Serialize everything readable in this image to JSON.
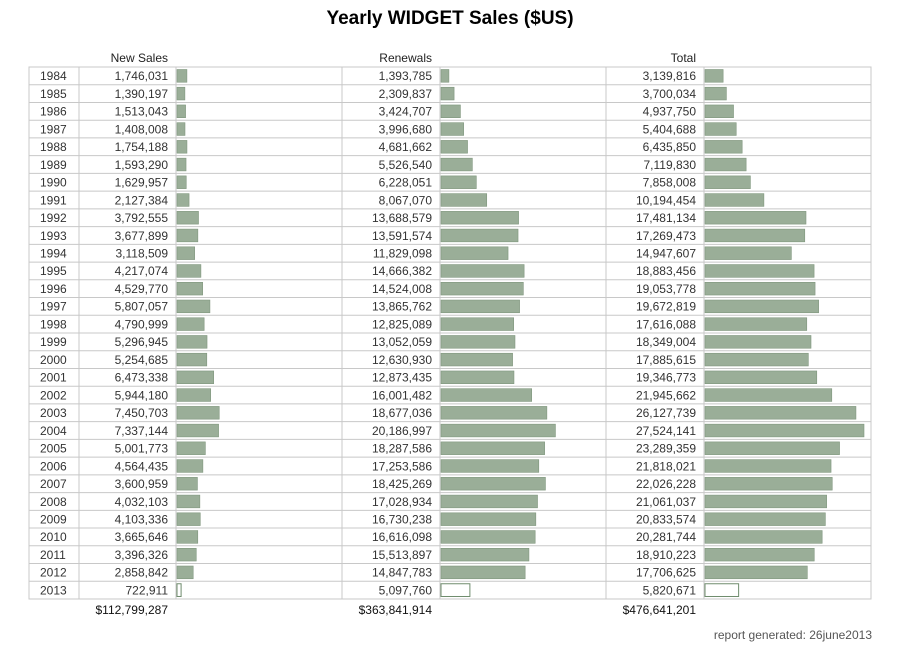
{
  "chart_data": {
    "type": "table",
    "title": "Yearly WIDGET Sales ($US)",
    "columns": [
      "New Sales",
      "Renewals",
      "Total"
    ],
    "years": [
      "1984",
      "1985",
      "1986",
      "1987",
      "1988",
      "1989",
      "1990",
      "1991",
      "1992",
      "1993",
      "1994",
      "1995",
      "1996",
      "1997",
      "1998",
      "1999",
      "2000",
      "2001",
      "2002",
      "2003",
      "2004",
      "2005",
      "2006",
      "2007",
      "2008",
      "2009",
      "2010",
      "2011",
      "2012",
      "2013"
    ],
    "new_sales": [
      1746031,
      1390197,
      1513043,
      1408008,
      1754188,
      1593290,
      1629957,
      2127384,
      3792555,
      3677899,
      3118509,
      4217074,
      4529770,
      5807057,
      4790999,
      5296945,
      5254685,
      6473338,
      5944180,
      7450703,
      7337144,
      5001773,
      4564435,
      3600959,
      4032103,
      4103336,
      3665646,
      3396326,
      2858842,
      722911
    ],
    "renewals": [
      1393785,
      2309837,
      3424707,
      3996680,
      4681662,
      5526540,
      6228051,
      8067070,
      13688579,
      13591574,
      11829098,
      14666382,
      14524008,
      13865762,
      12825089,
      13052059,
      12630930,
      12873435,
      16001482,
      18677036,
      20186997,
      18287586,
      17253586,
      18425269,
      17028934,
      16730238,
      16616098,
      15513897,
      14847783,
      5097760
    ],
    "totals": [
      3139816,
      3700034,
      4937750,
      5404688,
      6435850,
      7119830,
      7858008,
      10194454,
      17481134,
      17269473,
      14947607,
      18883456,
      19053778,
      19672819,
      17616088,
      18349004,
      17885615,
      19346773,
      21945662,
      26127739,
      27524141,
      23289359,
      21818021,
      22026228,
      21061037,
      20833574,
      20281744,
      18910223,
      17706625,
      5820671
    ],
    "column_totals": [
      "$112,799,287",
      "$363,841,914",
      "$476,641,201"
    ],
    "bar_max": 27524141,
    "partial_year": "2013",
    "colors": {
      "bar_fill": "#9aae98",
      "bar_stroke": "#7f967d",
      "partial_bar_fill": "#ffffff",
      "partial_bar_stroke": "#6f8c6d",
      "grid": "#c8c8c8"
    }
  },
  "footer": "report generated: 26june2013"
}
